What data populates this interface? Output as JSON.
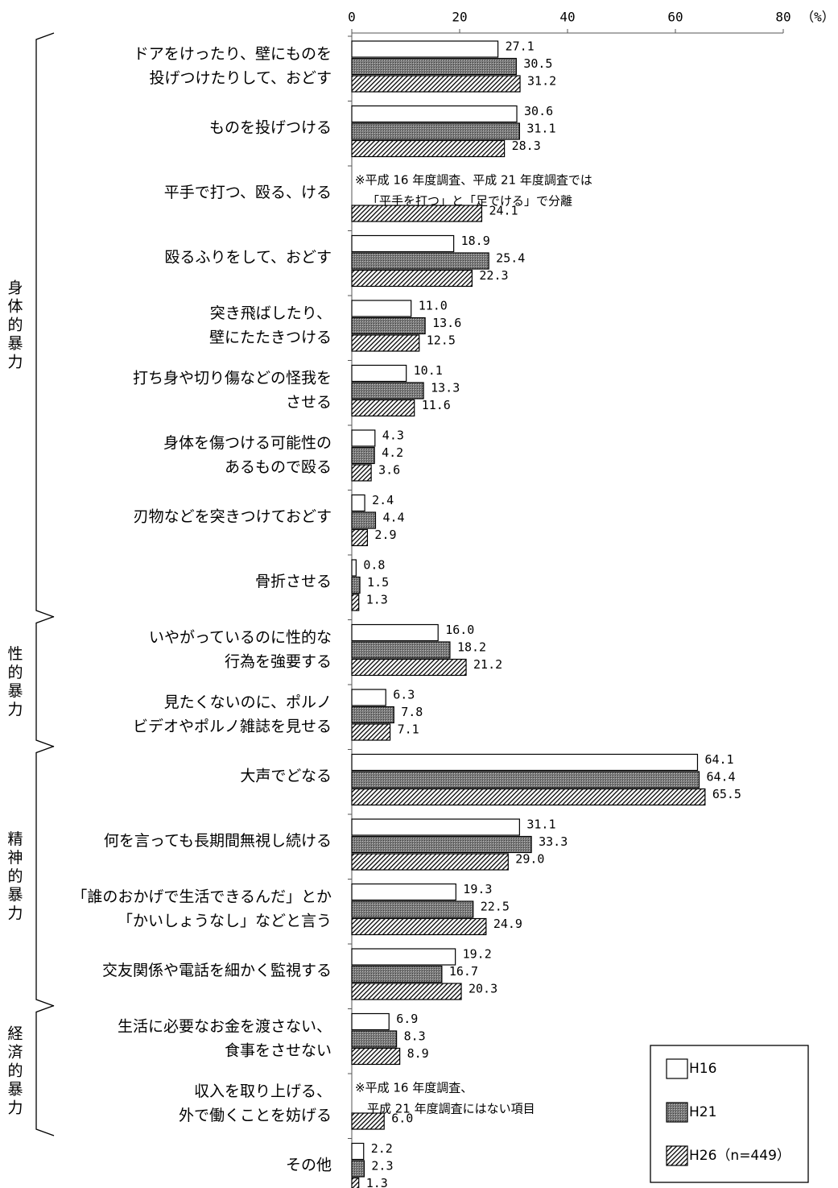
{
  "chart_data": {
    "type": "bar",
    "orientation": "horizontal",
    "xlim": [
      0,
      80
    ],
    "xticks": [
      "0",
      "20",
      "40",
      "60",
      "80"
    ],
    "unit_label": "（%）",
    "grid": false,
    "legend_position": "bottom-right",
    "series": [
      {
        "name": "H16",
        "fill": "white"
      },
      {
        "name": "H21",
        "fill": "dark-crosshatch"
      },
      {
        "name": "H26（n=449）",
        "fill": "diagonal-hatch"
      }
    ],
    "groups": [
      {
        "label": "身体的暴力",
        "start": 0,
        "end": 8
      },
      {
        "label": "性的暴力",
        "start": 9,
        "end": 10
      },
      {
        "label": "精神的暴力",
        "start": 11,
        "end": 14
      },
      {
        "label": "経済的暴力",
        "start": 15,
        "end": 16
      }
    ],
    "categories": [
      {
        "lines": [
          "ドアをけったり、壁にものを",
          "投げつけたりして、おどす"
        ],
        "values": [
          27.1,
          30.5,
          31.2
        ],
        "labels": [
          "27.1",
          "30.5",
          "31.2"
        ]
      },
      {
        "lines": [
          "ものを投げつける"
        ],
        "values": [
          30.6,
          31.1,
          28.3
        ],
        "labels": [
          "30.6",
          "31.1",
          "28.3"
        ]
      },
      {
        "lines": [
          "平手で打つ、殴る、ける"
        ],
        "values": [
          null,
          null,
          24.1
        ],
        "labels": [
          "",
          "",
          "24.1"
        ],
        "note": [
          "※平成 16 年度調査、平成 21 年度調査では",
          "「平手を打つ」と「足でける」で分離"
        ]
      },
      {
        "lines": [
          "殴るふりをして、おどす"
        ],
        "values": [
          18.9,
          25.4,
          22.3
        ],
        "labels": [
          "18.9",
          "25.4",
          "22.3"
        ]
      },
      {
        "lines": [
          "突き飛ばしたり、",
          "壁にたたきつける"
        ],
        "values": [
          11.0,
          13.6,
          12.5
        ],
        "labels": [
          "11.0",
          "13.6",
          "12.5"
        ]
      },
      {
        "lines": [
          "打ち身や切り傷などの怪我を",
          "させる"
        ],
        "values": [
          10.1,
          13.3,
          11.6
        ],
        "labels": [
          "10.1",
          "13.3",
          "11.6"
        ]
      },
      {
        "lines": [
          "身体を傷つける可能性の",
          "あるもので殴る"
        ],
        "values": [
          4.3,
          4.2,
          3.6
        ],
        "labels": [
          "4.3",
          "4.2",
          "3.6"
        ]
      },
      {
        "lines": [
          "刃物などを突きつけておどす"
        ],
        "values": [
          2.4,
          4.4,
          2.9
        ],
        "labels": [
          "2.4",
          "4.4",
          "2.9"
        ]
      },
      {
        "lines": [
          "骨折させる"
        ],
        "values": [
          0.8,
          1.5,
          1.3
        ],
        "labels": [
          "0.8",
          "1.5",
          "1.3"
        ]
      },
      {
        "lines": [
          "いやがっているのに性的な",
          "行為を強要する"
        ],
        "values": [
          16.0,
          18.2,
          21.2
        ],
        "labels": [
          "16.0",
          "18.2",
          "21.2"
        ]
      },
      {
        "lines": [
          "見たくないのに、ポルノ",
          "ビデオやポルノ雑誌を見せる"
        ],
        "values": [
          6.3,
          7.8,
          7.1
        ],
        "labels": [
          "6.3",
          "7.8",
          "7.1"
        ]
      },
      {
        "lines": [
          "大声でどなる"
        ],
        "values": [
          64.1,
          64.4,
          65.5
        ],
        "labels": [
          "64.1",
          "64.4",
          "65.5"
        ]
      },
      {
        "lines": [
          "何を言っても長期間無視し続ける"
        ],
        "values": [
          31.1,
          33.3,
          29.0
        ],
        "labels": [
          "31.1",
          "33.3",
          "29.0"
        ]
      },
      {
        "lines": [
          "「誰のおかげで生活できるんだ」とか",
          "「かいしょうなし」などと言う"
        ],
        "values": [
          19.3,
          22.5,
          24.9
        ],
        "labels": [
          "19.3",
          "22.5",
          "24.9"
        ]
      },
      {
        "lines": [
          "交友関係や電話を細かく監視する"
        ],
        "values": [
          19.2,
          16.7,
          20.3
        ],
        "labels": [
          "19.2",
          "16.7",
          "20.3"
        ]
      },
      {
        "lines": [
          "生活に必要なお金を渡さない、",
          "食事をさせない"
        ],
        "values": [
          6.9,
          8.3,
          8.9
        ],
        "labels": [
          "6.9",
          "8.3",
          "8.9"
        ]
      },
      {
        "lines": [
          "収入を取り上げる、",
          "外で働くことを妨げる"
        ],
        "values": [
          null,
          null,
          6.0
        ],
        "labels": [
          "",
          "",
          "6.0"
        ],
        "note": [
          "※平成 16 年度調査、",
          "平成 21 年度調査にはない項目"
        ]
      },
      {
        "lines": [
          "その他"
        ],
        "values": [
          2.2,
          2.3,
          1.3
        ],
        "labels": [
          "2.2",
          "2.3",
          "1.3"
        ]
      }
    ]
  }
}
